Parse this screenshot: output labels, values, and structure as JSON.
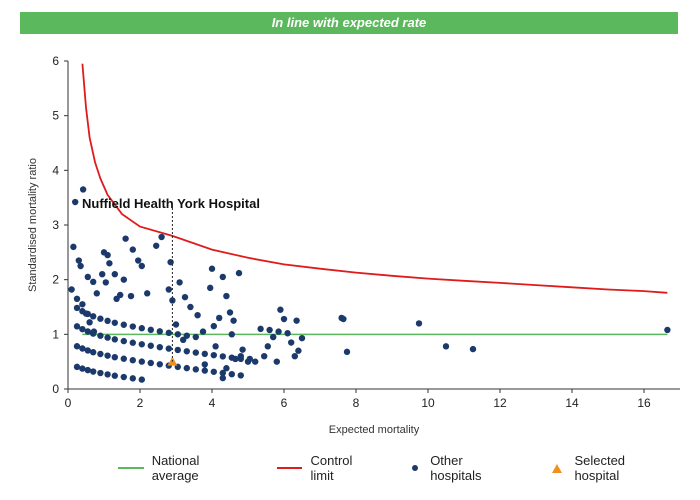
{
  "banner": {
    "text": "In line with expected rate"
  },
  "chart_data": {
    "type": "scatter",
    "xlabel": "Expected mortality",
    "ylabel": "Standardised mortality ratio",
    "xlim": [
      0,
      17
    ],
    "ylim": [
      0,
      6
    ],
    "x_ticks": [
      0,
      2,
      4,
      6,
      8,
      10,
      12,
      14,
      16
    ],
    "y_ticks": [
      0,
      1,
      2,
      3,
      4,
      5,
      6
    ],
    "grid": false,
    "legend_position": "bottom",
    "annotation": {
      "text": "Nuffield Health York Hospital",
      "x": 2.9
    },
    "national_average": {
      "name": "National average",
      "y": 1,
      "x_range": [
        0.4,
        16.65
      ],
      "color": "#5cb85c"
    },
    "control_limit": {
      "name": "Control limit",
      "color": "#e01b1b",
      "points": [
        [
          0.4,
          5.95
        ],
        [
          0.5,
          5.15
        ],
        [
          0.6,
          4.6
        ],
        [
          0.75,
          4.15
        ],
        [
          0.9,
          3.85
        ],
        [
          1.1,
          3.55
        ],
        [
          1.5,
          3.2
        ],
        [
          2,
          2.97
        ],
        [
          2.9,
          2.8
        ],
        [
          4,
          2.55
        ],
        [
          5,
          2.4
        ],
        [
          6,
          2.28
        ],
        [
          7,
          2.2
        ],
        [
          8,
          2.13
        ],
        [
          9,
          2.07
        ],
        [
          10,
          2.02
        ],
        [
          11,
          1.98
        ],
        [
          12,
          1.94
        ],
        [
          13,
          1.9
        ],
        [
          14,
          1.86
        ],
        [
          15,
          1.82
        ],
        [
          16,
          1.79
        ],
        [
          16.65,
          1.76
        ]
      ]
    },
    "other_hospitals": {
      "name": "Other hospitals",
      "color": "#1b3a6b",
      "points": [
        [
          0.1,
          1.82
        ],
        [
          0.15,
          2.6
        ],
        [
          0.2,
          3.42
        ],
        [
          0.25,
          1.65
        ],
        [
          0.3,
          2.35
        ],
        [
          0.35,
          2.25
        ],
        [
          0.42,
          3.65
        ],
        [
          0.4,
          1.55
        ],
        [
          0.5,
          1.38
        ],
        [
          0.55,
          2.05
        ],
        [
          0.6,
          1.22
        ],
        [
          0.7,
          1.96
        ],
        [
          0.72,
          1.05
        ],
        [
          0.8,
          1.75
        ],
        [
          0.95,
          2.1
        ],
        [
          1.0,
          2.5
        ],
        [
          1.1,
          2.45
        ],
        [
          1.15,
          2.3
        ],
        [
          1.05,
          1.95
        ],
        [
          1.3,
          2.1
        ],
        [
          1.35,
          1.65
        ],
        [
          1.45,
          1.72
        ],
        [
          1.55,
          2.0
        ],
        [
          1.6,
          2.75
        ],
        [
          1.75,
          1.7
        ],
        [
          1.8,
          2.55
        ],
        [
          1.95,
          2.35
        ],
        [
          2.05,
          2.25
        ],
        [
          2.2,
          1.75
        ],
        [
          2.45,
          2.62
        ],
        [
          2.6,
          2.78
        ],
        [
          2.8,
          1.82
        ],
        [
          2.85,
          2.32
        ],
        [
          2.9,
          1.62
        ],
        [
          3.0,
          1.18
        ],
        [
          3.1,
          1.95
        ],
        [
          3.25,
          1.68
        ],
        [
          3.4,
          1.5
        ],
        [
          3.6,
          1.35
        ],
        [
          3.75,
          1.05
        ],
        [
          3.95,
          1.85
        ],
        [
          4.0,
          2.2
        ],
        [
          4.05,
          1.15
        ],
        [
          4.2,
          1.3
        ],
        [
          4.3,
          2.05
        ],
        [
          4.4,
          1.7
        ],
        [
          4.5,
          1.4
        ],
        [
          4.55,
          1.0
        ],
        [
          4.6,
          1.25
        ],
        [
          4.75,
          2.12
        ],
        [
          4.85,
          0.72
        ],
        [
          5.05,
          0.55
        ],
        [
          5.2,
          0.5
        ],
        [
          5.35,
          1.1
        ],
        [
          5.45,
          0.6
        ],
        [
          5.55,
          0.78
        ],
        [
          5.6,
          1.08
        ],
        [
          5.7,
          0.95
        ],
        [
          5.8,
          0.5
        ],
        [
          5.85,
          1.05
        ],
        [
          5.9,
          1.45
        ],
        [
          6.0,
          1.28
        ],
        [
          6.1,
          1.02
        ],
        [
          6.2,
          0.85
        ],
        [
          6.3,
          0.6
        ],
        [
          6.35,
          1.25
        ],
        [
          6.4,
          0.7
        ],
        [
          6.5,
          0.93
        ],
        [
          7.6,
          1.3
        ],
        [
          7.65,
          1.28
        ],
        [
          7.75,
          0.68
        ],
        [
          9.75,
          1.2
        ],
        [
          10.5,
          0.78
        ],
        [
          11.25,
          0.73
        ],
        [
          16.65,
          1.08
        ],
        [
          4.3,
          0.2
        ],
        [
          4.4,
          0.38
        ],
        [
          4.65,
          0.55
        ],
        [
          4.1,
          0.78
        ],
        [
          3.8,
          0.45
        ],
        [
          3.2,
          0.9
        ],
        [
          4.8,
          0.6
        ],
        [
          5.0,
          0.5
        ]
      ]
    },
    "selected_hospital": {
      "name": "Selected hospital",
      "x": 2.9,
      "y": 0.5,
      "color": "#f0901e"
    }
  }
}
